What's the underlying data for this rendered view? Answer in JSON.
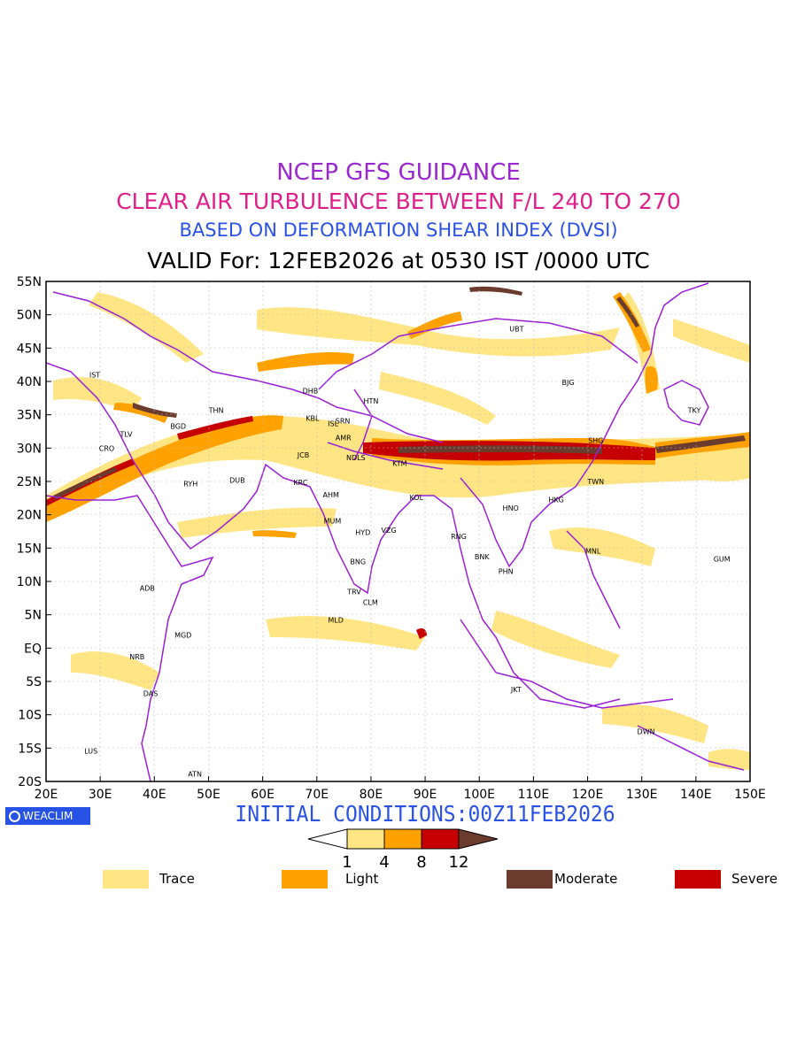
{
  "titles": {
    "line1": "NCEP GFS GUIDANCE",
    "line2": "CLEAR AIR TURBULENCE BETWEEN F/L 240 TO 270",
    "line3": "BASED ON DEFORMATION SHEAR INDEX (DVSI)",
    "line4": "VALID For: 12FEB2026 at 0530 IST /0000 UTC"
  },
  "map": {
    "lon_range": [
      20,
      150
    ],
    "lat_range": [
      -20,
      55
    ],
    "lon_ticks": [
      "20E",
      "30E",
      "40E",
      "50E",
      "60E",
      "70E",
      "80E",
      "90E",
      "100E",
      "110E",
      "120E",
      "130E",
      "140E",
      "150E"
    ],
    "lat_ticks": [
      "55N",
      "50N",
      "45N",
      "40N",
      "35N",
      "30N",
      "25N",
      "20N",
      "15N",
      "10N",
      "5N",
      "EQ",
      "5S",
      "10S",
      "15S",
      "20S"
    ],
    "cities": [
      {
        "code": "UBT",
        "lon": 106.9,
        "lat": 47.9
      },
      {
        "code": "BJG",
        "lon": 116.4,
        "lat": 39.9
      },
      {
        "code": "TKY",
        "lon": 139.7,
        "lat": 35.7
      },
      {
        "code": "SHG",
        "lon": 121.5,
        "lat": 31.2
      },
      {
        "code": "TWN",
        "lon": 121.5,
        "lat": 25.0
      },
      {
        "code": "HKG",
        "lon": 114.2,
        "lat": 22.3
      },
      {
        "code": "HNO",
        "lon": 105.8,
        "lat": 21.0
      },
      {
        "code": "HTN",
        "lon": 80.0,
        "lat": 37.1
      },
      {
        "code": "DHB",
        "lon": 68.8,
        "lat": 38.6
      },
      {
        "code": "KBL",
        "lon": 69.2,
        "lat": 34.5
      },
      {
        "code": "SRN",
        "lon": 74.8,
        "lat": 34.1
      },
      {
        "code": "ISL",
        "lon": 73.0,
        "lat": 33.7
      },
      {
        "code": "AMR",
        "lon": 74.9,
        "lat": 31.6
      },
      {
        "code": "JCB",
        "lon": 67.5,
        "lat": 29.0
      },
      {
        "code": "NDLS",
        "lon": 77.2,
        "lat": 28.6
      },
      {
        "code": "KTM",
        "lon": 85.3,
        "lat": 27.7
      },
      {
        "code": "KRC",
        "lon": 67.0,
        "lat": 24.9
      },
      {
        "code": "AHM",
        "lon": 72.6,
        "lat": 23.0
      },
      {
        "code": "KOL",
        "lon": 88.4,
        "lat": 22.6
      },
      {
        "code": "MUM",
        "lon": 72.9,
        "lat": 19.1
      },
      {
        "code": "HYD",
        "lon": 78.5,
        "lat": 17.4
      },
      {
        "code": "VZG",
        "lon": 83.3,
        "lat": 17.7
      },
      {
        "code": "RNG",
        "lon": 96.2,
        "lat": 16.8
      },
      {
        "code": "BNG",
        "lon": 77.6,
        "lat": 12.97
      },
      {
        "code": "BNK",
        "lon": 100.5,
        "lat": 13.75
      },
      {
        "code": "PHN",
        "lon": 104.9,
        "lat": 11.55
      },
      {
        "code": "MNL",
        "lon": 121.0,
        "lat": 14.6
      },
      {
        "code": "GUM",
        "lon": 144.8,
        "lat": 13.4
      },
      {
        "code": "TRV",
        "lon": 76.9,
        "lat": 8.5
      },
      {
        "code": "CLM",
        "lon": 79.9,
        "lat": 6.9
      },
      {
        "code": "MLD",
        "lon": 73.5,
        "lat": 4.2
      },
      {
        "code": "IST",
        "lon": 29.0,
        "lat": 41.0
      },
      {
        "code": "TLV",
        "lon": 34.8,
        "lat": 32.1
      },
      {
        "code": "CRO",
        "lon": 31.2,
        "lat": 30.0
      },
      {
        "code": "BGD",
        "lon": 44.4,
        "lat": 33.3
      },
      {
        "code": "THN",
        "lon": 51.4,
        "lat": 35.7
      },
      {
        "code": "RYH",
        "lon": 46.7,
        "lat": 24.7
      },
      {
        "code": "DUB",
        "lon": 55.3,
        "lat": 25.2
      },
      {
        "code": "ADB",
        "lon": 38.7,
        "lat": 9.0
      },
      {
        "code": "MGD",
        "lon": 45.3,
        "lat": 2.0
      },
      {
        "code": "NRB",
        "lon": 36.8,
        "lat": -1.3
      },
      {
        "code": "DAS",
        "lon": 39.3,
        "lat": -6.8
      },
      {
        "code": "LUS",
        "lon": 28.3,
        "lat": -15.4
      },
      {
        "code": "ATN",
        "lon": 47.5,
        "lat": -18.9
      },
      {
        "code": "JKT",
        "lon": 106.8,
        "lat": -6.2
      },
      {
        "code": "DWN",
        "lon": 130.8,
        "lat": -12.5
      }
    ]
  },
  "badge": {
    "text": "WEACLIM"
  },
  "initial_conditions": "INITIAL CONDITIONS:00Z11FEB2026",
  "colorbar": {
    "ticks": [
      "1",
      "4",
      "8",
      "12"
    ],
    "colors": [
      "#ffe583",
      "#ffa200",
      "#c60000",
      "#6b3c2e"
    ]
  },
  "legend": [
    {
      "label": "Trace",
      "color": "#ffe583"
    },
    {
      "label": "Light",
      "color": "#ffa200"
    },
    {
      "label": "Moderate",
      "color": "#6b3c2e"
    },
    {
      "label": "Severe",
      "color": "#c60000"
    }
  ]
}
